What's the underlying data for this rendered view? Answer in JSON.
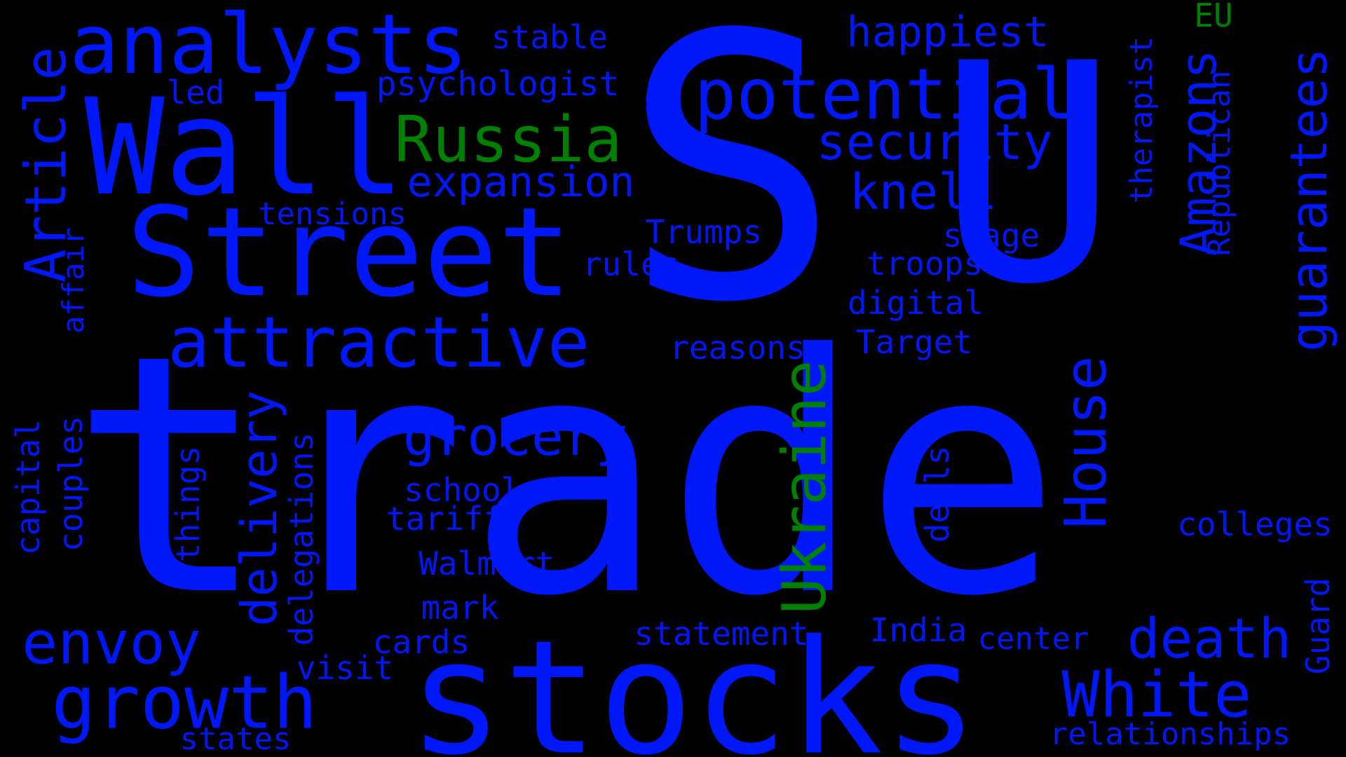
{
  "colors": {
    "background": "#000000",
    "blue": "#0018f9",
    "green": "#008000"
  },
  "words": [
    {
      "text": "trade",
      "color": "blue"
    },
    {
      "text": "S",
      "color": "blue"
    },
    {
      "text": "U",
      "color": "blue"
    },
    {
      "text": "stocks",
      "color": "blue"
    },
    {
      "text": "Street",
      "color": "blue"
    },
    {
      "text": "Wall",
      "color": "blue"
    },
    {
      "text": "analysts",
      "color": "blue"
    },
    {
      "text": "attractive",
      "color": "blue"
    },
    {
      "text": "growth",
      "color": "blue"
    },
    {
      "text": "potential",
      "color": "blue"
    },
    {
      "text": "Russia",
      "color": "green"
    },
    {
      "text": "Ukraine",
      "color": "green"
    },
    {
      "text": "Article",
      "color": "blue"
    },
    {
      "text": "envoy",
      "color": "blue"
    },
    {
      "text": "White",
      "color": "blue"
    },
    {
      "text": "death",
      "color": "blue"
    },
    {
      "text": "House",
      "color": "blue"
    },
    {
      "text": "grocery",
      "color": "blue"
    },
    {
      "text": "delivery",
      "color": "blue"
    },
    {
      "text": "guarantees",
      "color": "blue"
    },
    {
      "text": "security",
      "color": "blue"
    },
    {
      "text": "knell",
      "color": "blue"
    },
    {
      "text": "Amazons",
      "color": "blue"
    },
    {
      "text": "expansion",
      "color": "blue"
    },
    {
      "text": "happiest",
      "color": "blue"
    },
    {
      "text": "psychologist",
      "color": "blue"
    },
    {
      "text": "relationships",
      "color": "blue"
    },
    {
      "text": "colleges",
      "color": "blue"
    },
    {
      "text": "tensions",
      "color": "blue"
    },
    {
      "text": "Trumps",
      "color": "blue"
    },
    {
      "text": "stage",
      "color": "blue"
    },
    {
      "text": "troops",
      "color": "blue"
    },
    {
      "text": "digital",
      "color": "blue"
    },
    {
      "text": "Target",
      "color": "blue"
    },
    {
      "text": "rules",
      "color": "blue"
    },
    {
      "text": "reasons",
      "color": "blue"
    },
    {
      "text": "schools",
      "color": "blue"
    },
    {
      "text": "tariff",
      "color": "blue"
    },
    {
      "text": "Walmart",
      "color": "blue"
    },
    {
      "text": "mark",
      "color": "blue"
    },
    {
      "text": "cards",
      "color": "blue"
    },
    {
      "text": "statement",
      "color": "blue"
    },
    {
      "text": "India",
      "color": "blue"
    },
    {
      "text": "center",
      "color": "blue"
    },
    {
      "text": "visit",
      "color": "blue"
    },
    {
      "text": "states",
      "color": "blue"
    },
    {
      "text": "stable",
      "color": "blue"
    },
    {
      "text": "led",
      "color": "blue"
    },
    {
      "text": "EU",
      "color": "green"
    },
    {
      "text": "therapist",
      "color": "blue"
    },
    {
      "text": "Republican",
      "color": "blue"
    },
    {
      "text": "Guard",
      "color": "blue"
    },
    {
      "text": "deals",
      "color": "blue"
    },
    {
      "text": "things",
      "color": "blue"
    },
    {
      "text": "delegations",
      "color": "blue"
    },
    {
      "text": "capital",
      "color": "blue"
    },
    {
      "text": "couples",
      "color": "blue"
    },
    {
      "text": "affair",
      "color": "blue"
    }
  ]
}
